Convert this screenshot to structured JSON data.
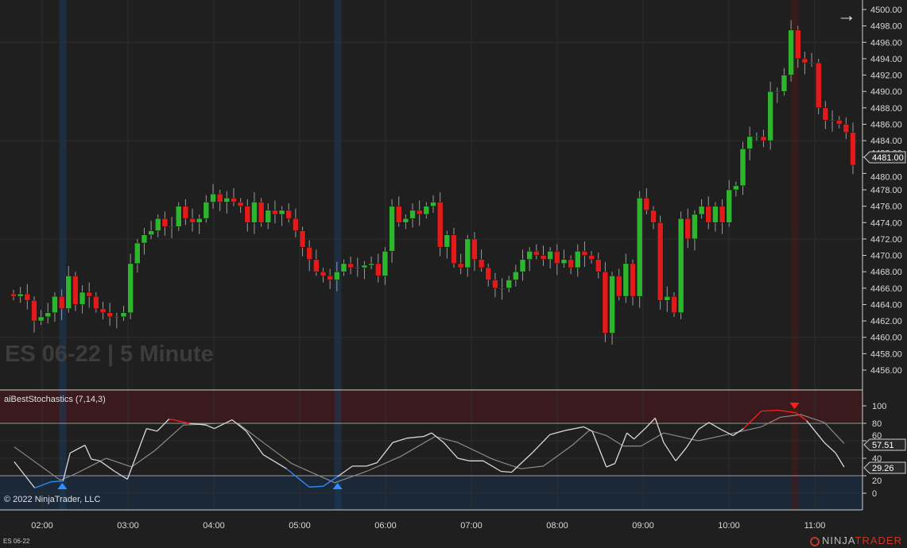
{
  "instrument_label": "ES 06-22",
  "watermark": "ES 06-22 | 5 Minute",
  "copyright": "© 2022 NinjaTrader, LLC",
  "logo": {
    "left": "NINJA",
    "right": "TRADER"
  },
  "nav_arrow_icon": "arrow-right-icon",
  "colors": {
    "background": "#1f1f1f",
    "up": "#2db52d",
    "down": "#e31a1a",
    "grid": "#2e2e2e",
    "stoch_k": "#d8d8d8",
    "stoch_d": "#8a8a8a",
    "oversold": "#2f8fff",
    "overbought": "#ff1f1f"
  },
  "price_axis": {
    "ticks": [
      "4500.00",
      "4498.00",
      "4496.00",
      "4494.00",
      "4492.00",
      "4490.00",
      "4488.00",
      "4486.00",
      "4484.00",
      "4482.00",
      "4480.00",
      "4478.00",
      "4476.00",
      "4474.00",
      "4472.00",
      "4470.00",
      "4468.00",
      "4466.00",
      "4464.00",
      "4462.00",
      "4460.00",
      "4458.00",
      "4456.00"
    ],
    "last_price": "4481.00"
  },
  "time_axis": {
    "ticks": [
      "02:00",
      "03:00",
      "04:00",
      "05:00",
      "06:00",
      "07:00",
      "08:00",
      "09:00",
      "10:00",
      "11:00"
    ]
  },
  "indicator": {
    "title": "aiBestStochastics (7,14,3)",
    "axis_ticks": [
      "100",
      "80",
      "60",
      "40",
      "20",
      "0"
    ],
    "k_value": "57.51",
    "d_value": "29.26",
    "overbought": 80,
    "oversold": 20
  },
  "chart_data": [
    {
      "type": "candlestick",
      "title": "ES 06-22 | 5 Minute",
      "ylim": [
        4455,
        4501
      ],
      "closes": [
        4465,
        4465.3,
        4464.5,
        4462,
        4462.5,
        4463,
        4465,
        4463.5,
        4467.5,
        4464,
        4465.5,
        4465,
        4463.5,
        4463,
        4462.5,
        4462.5,
        4463,
        4469,
        4471.5,
        4472.5,
        4473,
        4474.5,
        4473.5,
        4473.5,
        4476,
        4474.5,
        4474,
        4474.5,
        4476.5,
        4477.5,
        4476.5,
        4477,
        4476.5,
        4476,
        4474,
        4476.5,
        4474,
        4475.5,
        4475,
        4475.5,
        4474.5,
        4473,
        4471,
        4469.5,
        4468,
        4467.5,
        4467,
        4468,
        4469,
        4468.5,
        4468.5,
        4468.8,
        4469,
        4467.5,
        4470.5,
        4476,
        4474,
        4474.5,
        4475.5,
        4475,
        4476,
        4476.5,
        4471,
        4472.5,
        4469,
        4468.5,
        4472,
        4469.5,
        4468.5,
        4467,
        4466,
        4466,
        4467,
        4468,
        4469.5,
        4470.5,
        4470,
        4469.5,
        4470.5,
        4469,
        4469.5,
        4468.5,
        4470.5,
        4470,
        4469.5,
        4468,
        4460.5,
        4467.5,
        4465,
        4469,
        4465,
        4477,
        4475.5,
        4474,
        4464.5,
        4465,
        4463,
        4474.5,
        4472,
        4475,
        4476,
        4474,
        4476,
        4474,
        4478,
        4478.5,
        4483,
        4484.5,
        4484.5,
        4484,
        4490,
        4490,
        4492,
        4497.5,
        4494,
        4493.5,
        4493.5,
        4488,
        4486.5,
        4486.5,
        4486,
        4485,
        4481
      ]
    },
    {
      "type": "line",
      "title": "aiBestStochastics (7,14,3)",
      "ylim": [
        -20,
        118
      ],
      "series": [
        {
          "points": [
            [
              0.1,
              36
            ],
            [
              3,
              6
            ],
            [
              5.3,
              13
            ],
            [
              7,
              14
            ],
            [
              8,
              46
            ],
            [
              10.1,
              55
            ],
            [
              11,
              39
            ],
            [
              12.2,
              37
            ],
            [
              14.3,
              25
            ],
            [
              16.1,
              16
            ],
            [
              18.8,
              74
            ],
            [
              20.3,
              71
            ],
            [
              22,
              85
            ],
            [
              24.8,
              80
            ],
            [
              27.2,
              78
            ],
            [
              28.4,
              74
            ],
            [
              30.9,
              84
            ],
            [
              32.9,
              71
            ],
            [
              35.3,
              44
            ],
            [
              38.6,
              28
            ],
            [
              41.8,
              7
            ],
            [
              43.8,
              8
            ],
            [
              45.8,
              19
            ],
            [
              47.9,
              31
            ],
            [
              49.9,
              31
            ],
            [
              51.4,
              35
            ],
            [
              53.6,
              58
            ],
            [
              55.6,
              63
            ],
            [
              58,
              65
            ],
            [
              59.1,
              69
            ],
            [
              60.8,
              58
            ],
            [
              62.8,
              40
            ],
            [
              64.4,
              37
            ],
            [
              66.4,
              37
            ],
            [
              68.9,
              25
            ],
            [
              70.4,
              24
            ],
            [
              73.3,
              46
            ],
            [
              75.8,
              67
            ],
            [
              78.1,
              72
            ],
            [
              80.6,
              76
            ],
            [
              81.8,
              71
            ],
            [
              83.8,
              30
            ],
            [
              85,
              34
            ],
            [
              86.7,
              69
            ],
            [
              87.7,
              62
            ],
            [
              89.4,
              75
            ],
            [
              90.7,
              86
            ],
            [
              91.9,
              58
            ],
            [
              93.6,
              37
            ],
            [
              95.1,
              52
            ],
            [
              96.8,
              73
            ],
            [
              98.3,
              81
            ],
            [
              100,
              73
            ],
            [
              101.7,
              66
            ],
            [
              103.2,
              74
            ],
            [
              105.7,
              94
            ],
            [
              108.1,
              95
            ],
            [
              110.6,
              92
            ],
            [
              112.1,
              83
            ],
            [
              114.6,
              58
            ],
            [
              116.2,
              46
            ],
            [
              117.4,
              30
            ]
          ]
        },
        {
          "points": [
            [
              0.1,
              53
            ],
            [
              6.6,
              15
            ],
            [
              8.7,
              22
            ],
            [
              13.1,
              40
            ],
            [
              16.7,
              30
            ],
            [
              20,
              49
            ],
            [
              24,
              78
            ],
            [
              28.9,
              80
            ],
            [
              31.7,
              80
            ],
            [
              35.3,
              58
            ],
            [
              39.3,
              34
            ],
            [
              45.4,
              12
            ],
            [
              49.9,
              25
            ],
            [
              54.7,
              42
            ],
            [
              59.6,
              65
            ],
            [
              62.8,
              58
            ],
            [
              67.7,
              39
            ],
            [
              71.7,
              28
            ],
            [
              74.9,
              31
            ],
            [
              79,
              55
            ],
            [
              81.4,
              72
            ],
            [
              83.8,
              66
            ],
            [
              86.2,
              54
            ],
            [
              88.7,
              54
            ],
            [
              91.9,
              69
            ],
            [
              96.8,
              60
            ],
            [
              100.8,
              67
            ],
            [
              105.7,
              76
            ],
            [
              108.4,
              87
            ],
            [
              111.3,
              90
            ],
            [
              114.6,
              81
            ],
            [
              117.4,
              57
            ]
          ]
        }
      ],
      "signals": [
        {
          "bar": 6.9,
          "type": "buy"
        },
        {
          "bar": 45.8,
          "type": "buy"
        },
        {
          "bar": 110.4,
          "type": "sell"
        }
      ]
    }
  ]
}
